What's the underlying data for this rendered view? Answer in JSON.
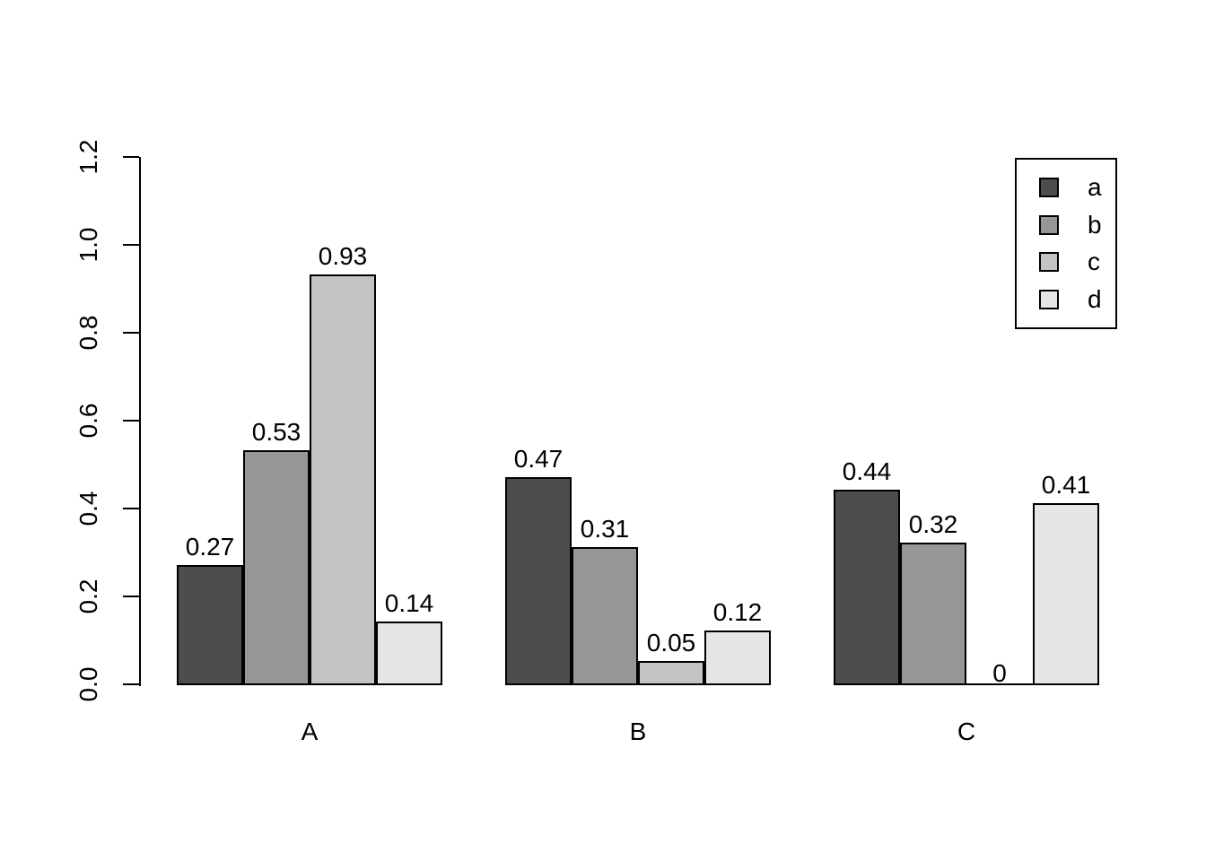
{
  "chart_data": {
    "type": "bar",
    "title": "",
    "xlabel": "",
    "ylabel": "",
    "categories": [
      "A",
      "B",
      "C"
    ],
    "series": [
      {
        "name": "a",
        "color": "#4D4D4D",
        "values": [
          0.27,
          0.47,
          0.44
        ]
      },
      {
        "name": "b",
        "color": "#969696",
        "values": [
          0.53,
          0.31,
          0.32
        ]
      },
      {
        "name": "c",
        "color": "#C3C3C3",
        "values": [
          0.93,
          0.05,
          0
        ]
      },
      {
        "name": "d",
        "color": "#E6E6E6",
        "values": [
          0.14,
          0.12,
          0.41
        ]
      }
    ],
    "bar_value_labels": [
      [
        "0.27",
        "0.53",
        "0.93",
        "0.14"
      ],
      [
        "0.47",
        "0.31",
        "0.05",
        "0.12"
      ],
      [
        "0.44",
        "0.32",
        "0",
        "0.41"
      ]
    ],
    "y_axis": {
      "ticks": [
        "0.0",
        "0.2",
        "0.4",
        "0.6",
        "0.8",
        "1.0",
        "1.2"
      ],
      "lim": [
        0,
        1.2
      ]
    },
    "legend": {
      "position": "top-right",
      "entries": [
        "a",
        "b",
        "c",
        "d"
      ]
    },
    "grid": false,
    "colors": {
      "background": "#FFFFFF",
      "axis": "#000000",
      "text": "#000000",
      "bar_border": "#000000"
    }
  }
}
